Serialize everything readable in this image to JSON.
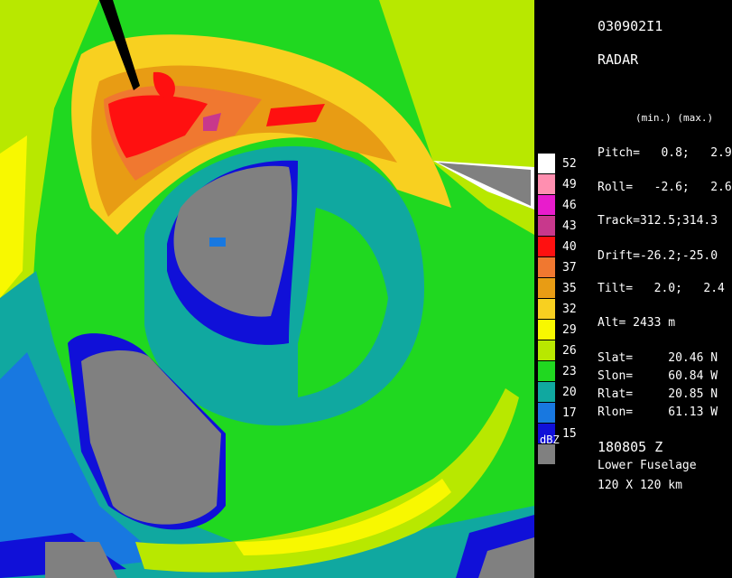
{
  "header": {
    "id": "030902I1",
    "instrument": "RADAR"
  },
  "minmax_label": "(min.) (max.)",
  "params": {
    "pitch": "Pitch=   0.8;   2.9",
    "roll": "Roll=   -2.6;   2.6",
    "track": "Track=312.5;314.3",
    "drift": "Drift=-26.2;-25.0",
    "tilt": "Tilt=   2.0;   2.4",
    "alt": "Alt= 2433 m"
  },
  "position": {
    "slat": "Slat=     20.46 N",
    "slon": "Slon=     60.84 W",
    "rlat": "Rlat=     20.85 N",
    "rlon": "Rlon=     61.13 W"
  },
  "footer": {
    "time": "180805 Z",
    "antenna": "Lower Fuselage",
    "extent": "120 X 120 km"
  },
  "legend": {
    "unit": "dBZ",
    "levels": [
      {
        "label": "52",
        "color": "#ffffff"
      },
      {
        "label": "49",
        "color": "#ff8fb0"
      },
      {
        "label": "46",
        "color": "#e81ccc"
      },
      {
        "label": "43",
        "color": "#c8388c"
      },
      {
        "label": "40",
        "color": "#ff1010"
      },
      {
        "label": "37",
        "color": "#f07830"
      },
      {
        "label": "35",
        "color": "#e89c14"
      },
      {
        "label": "32",
        "color": "#f8d020"
      },
      {
        "label": "29",
        "color": "#f8f800"
      },
      {
        "label": "26",
        "color": "#b8e800"
      },
      {
        "label": "23",
        "color": "#20d820"
      },
      {
        "label": "20",
        "color": "#10a8a0"
      },
      {
        "label": "17",
        "color": "#1878e0"
      },
      {
        "label": "15",
        "color": "#1010d8"
      },
      {
        "label": "",
        "color": "#808080"
      }
    ]
  }
}
